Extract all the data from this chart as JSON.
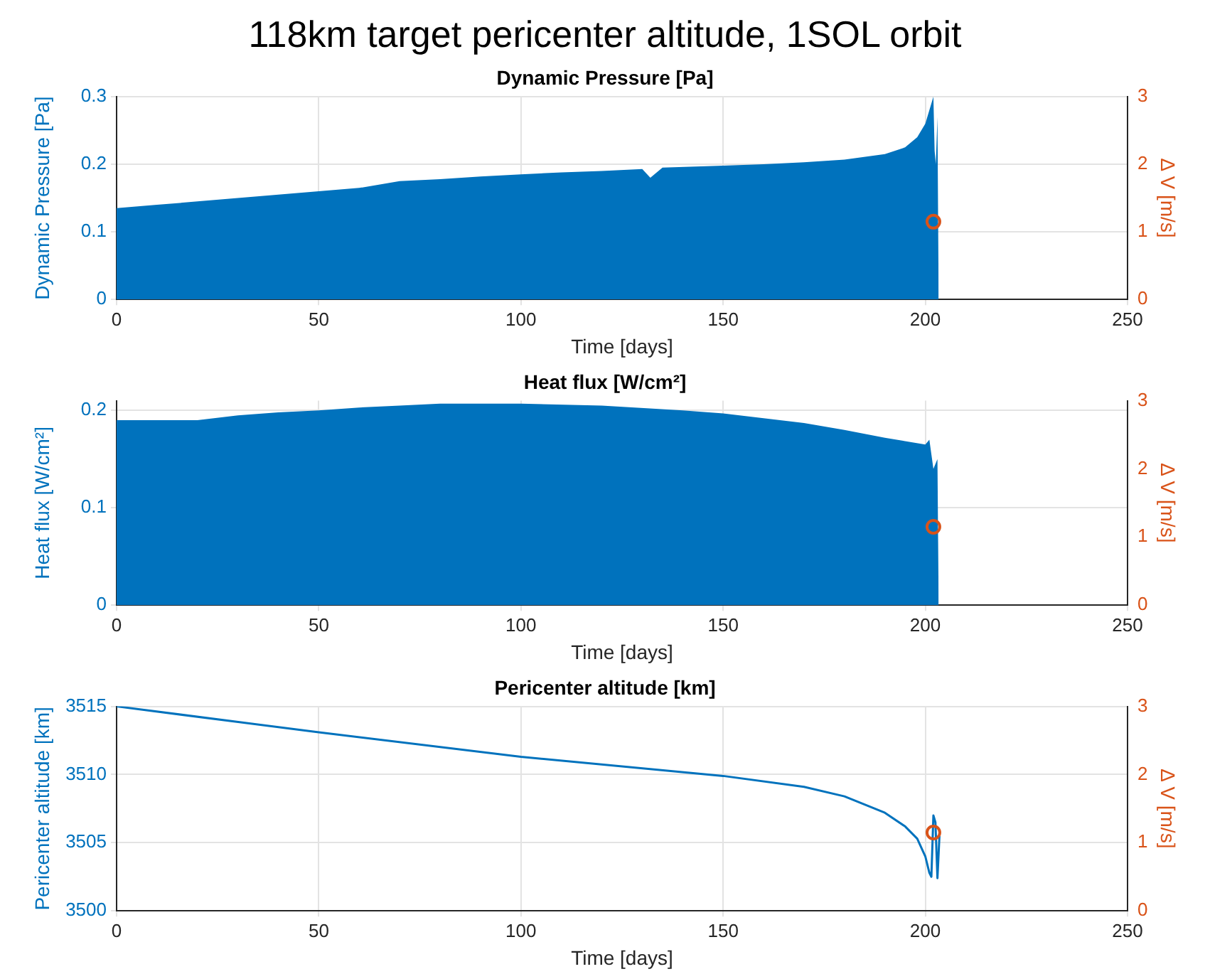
{
  "chart_data": [
    {
      "type": "area",
      "title": "118km target pericenter altitude, 1SOL orbit",
      "subtitle": "Dynamic Pressure [Pa]",
      "xlabel": "Time [days]",
      "ylabel": "Dynamic Pressure [Pa]",
      "y2label": "Δ V [m/s]",
      "xlim": [
        0,
        250
      ],
      "xticks": [
        0,
        50,
        100,
        150,
        200,
        250
      ],
      "ylim": [
        0,
        0.3
      ],
      "yticks": [
        0,
        0.1,
        0.2,
        0.3
      ],
      "y2lim": [
        0,
        3
      ],
      "y2ticks": [
        0,
        1,
        2,
        3
      ],
      "grid": true,
      "legend": false,
      "series": [
        {
          "color": "#0072bd",
          "x": [
            0,
            10,
            20,
            30,
            40,
            50,
            60,
            70,
            80,
            90,
            100,
            110,
            120,
            130,
            132,
            135,
            150,
            160,
            170,
            180,
            190,
            195,
            198,
            200,
            201,
            202,
            202.3,
            202.6,
            203,
            203.3
          ],
          "values": [
            0.135,
            0.14,
            0.145,
            0.15,
            0.155,
            0.16,
            0.165,
            0.175,
            0.178,
            0.182,
            0.185,
            0.188,
            0.19,
            0.193,
            0.18,
            0.195,
            0.198,
            0.2,
            0.203,
            0.207,
            0.215,
            0.225,
            0.24,
            0.26,
            0.28,
            0.3,
            0.22,
            0.2,
            0.27,
            0
          ]
        },
        {
          "type": "scatter",
          "axis": "y2",
          "color": "#d95319",
          "marker": "circle",
          "x": [
            202
          ],
          "values": [
            1.15
          ]
        }
      ]
    },
    {
      "type": "area",
      "title": "Heat flux [W/cm²]",
      "xlabel": "Time [days]",
      "ylabel": "Heat flux [W/cm²]",
      "y2label": "Δ V [m/s]",
      "xlim": [
        0,
        250
      ],
      "xticks": [
        0,
        50,
        100,
        150,
        200,
        250
      ],
      "ylim": [
        0,
        0.21
      ],
      "yticks": [
        0,
        0.1,
        0.2
      ],
      "y2lim": [
        0,
        3
      ],
      "y2ticks": [
        0,
        1,
        2,
        3
      ],
      "grid": true,
      "legend": false,
      "series": [
        {
          "color": "#0072bd",
          "x": [
            0,
            10,
            20,
            30,
            40,
            50,
            60,
            70,
            80,
            100,
            120,
            140,
            150,
            160,
            170,
            180,
            190,
            200,
            201,
            202,
            203,
            203.3
          ],
          "values": [
            0.19,
            0.19,
            0.19,
            0.195,
            0.198,
            0.2,
            0.203,
            0.205,
            0.207,
            0.207,
            0.205,
            0.2,
            0.197,
            0.192,
            0.187,
            0.18,
            0.172,
            0.165,
            0.17,
            0.14,
            0.15,
            0
          ]
        },
        {
          "type": "scatter",
          "axis": "y2",
          "color": "#d95319",
          "marker": "circle",
          "x": [
            202
          ],
          "values": [
            1.15
          ]
        }
      ]
    },
    {
      "type": "line",
      "title": "Pericenter altitude [km]",
      "xlabel": "Time [days]",
      "ylabel": "Pericenter altitude [km]",
      "y2label": "Δ V [m/s]",
      "xlim": [
        0,
        250
      ],
      "xticks": [
        0,
        50,
        100,
        150,
        200,
        250
      ],
      "ylim": [
        3500,
        3515
      ],
      "yticks": [
        3500,
        3505,
        3510,
        3515
      ],
      "y2lim": [
        0,
        3
      ],
      "y2ticks": [
        0,
        1,
        2,
        3
      ],
      "grid": true,
      "legend": false,
      "series": [
        {
          "color": "#0072bd",
          "x": [
            0,
            50,
            100,
            150,
            170,
            180,
            190,
            195,
            198,
            200,
            201,
            201.5,
            202,
            202.5,
            203,
            203.5
          ],
          "values": [
            3515,
            3513.1,
            3511.3,
            3509.9,
            3509.1,
            3508.4,
            3507.2,
            3506.2,
            3505.3,
            3504,
            3502.8,
            3502.5,
            3507,
            3506.5,
            3502.4,
            3505.5
          ]
        },
        {
          "type": "scatter",
          "axis": "y2",
          "color": "#d95319",
          "marker": "circle",
          "x": [
            202
          ],
          "values": [
            1.15
          ]
        }
      ]
    }
  ]
}
